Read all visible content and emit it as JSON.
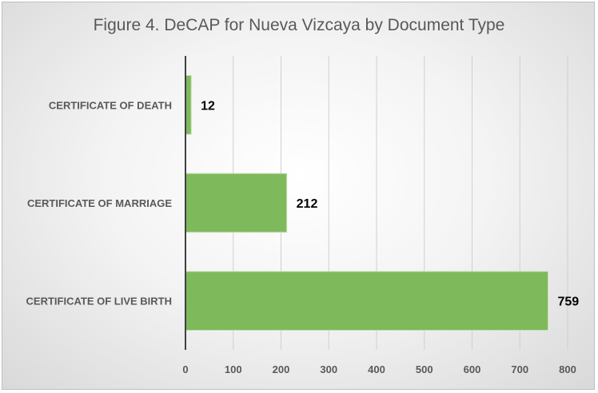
{
  "chart_data": {
    "type": "bar",
    "orientation": "horizontal",
    "title": "Figure 4. DeCAP for Nueva Vizcaya by Document Type",
    "categories": [
      "CERTIFICATE OF DEATH",
      "CERTIFICATE OF MARRIAGE",
      "CERTIFICATE OF LIVE BIRTH"
    ],
    "values": [
      12,
      212,
      759
    ],
    "xlim": [
      0,
      800
    ],
    "x_ticks": [
      0,
      100,
      200,
      300,
      400,
      500,
      600,
      700,
      800
    ],
    "grid": true,
    "legend": "none",
    "bar_color": "#7eb95c",
    "bar_edge_color": "#c7e0b4",
    "grid_color": "#d0d0d0",
    "axis_color": "#404040"
  }
}
